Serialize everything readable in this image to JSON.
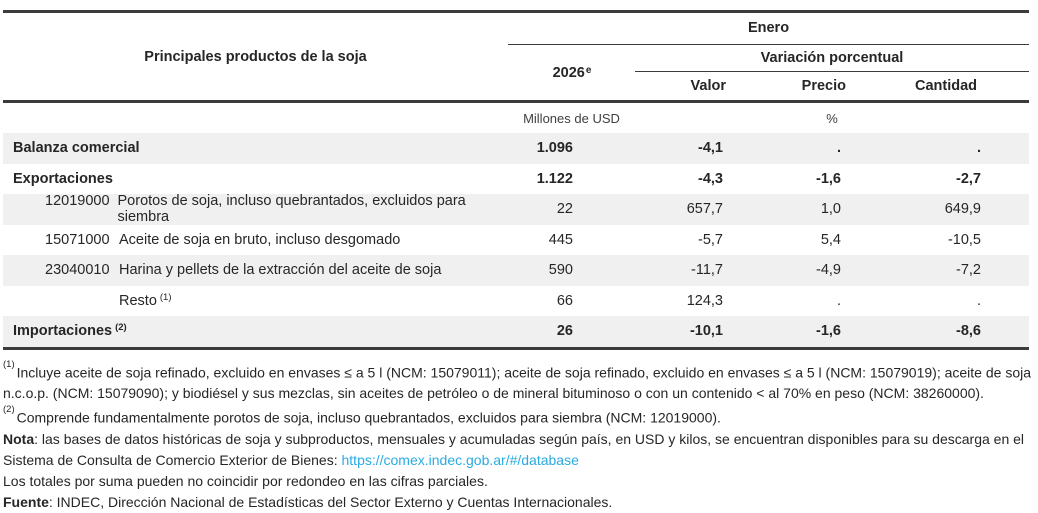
{
  "table": {
    "header": {
      "product_title": "Principales productos de la soja",
      "period": "Enero",
      "year": "2026",
      "year_sup": "e",
      "variation": "Variación porcentual",
      "col_valor": "Valor",
      "col_precio": "Precio",
      "col_cantidad": "Cantidad"
    },
    "units": {
      "usd": "Millones de USD",
      "pct": "%"
    },
    "rows": [
      {
        "code": "",
        "label": "Balanza comercial",
        "sup": "",
        "y2026": "1.096",
        "valor": "-4,1",
        "precio": ".",
        "cantidad": "."
      },
      {
        "code": "",
        "label": "Exportaciones",
        "sup": "",
        "y2026": "1.122",
        "valor": "-4,3",
        "precio": "-1,6",
        "cantidad": "-2,7"
      },
      {
        "code": "12019000",
        "label": "Porotos de soja, incluso quebrantados, excluidos para siembra",
        "sup": "",
        "y2026": "22",
        "valor": "657,7",
        "precio": "1,0",
        "cantidad": "649,9"
      },
      {
        "code": "15071000",
        "label": "Aceite de soja en bruto, incluso desgomado",
        "sup": "",
        "y2026": "445",
        "valor": "-5,7",
        "precio": "5,4",
        "cantidad": "-10,5"
      },
      {
        "code": "23040010",
        "label": "Harina y pellets de la extracción del aceite de soja",
        "sup": "",
        "y2026": "590",
        "valor": "-11,7",
        "precio": "-4,9",
        "cantidad": "-7,2"
      },
      {
        "code": "",
        "label": "Resto",
        "sup": "(1)",
        "y2026": "66",
        "valor": "124,3",
        "precio": ".",
        "cantidad": "."
      },
      {
        "code": "",
        "label": "Importaciones",
        "sup": "(2)",
        "y2026": "26",
        "valor": "-10,1",
        "precio": "-1,6",
        "cantidad": "-8,6"
      }
    ]
  },
  "footnotes": [
    {
      "marker": "(1)",
      "text": "Incluye aceite de soja refinado, excluido en envases ≤ a 5 l (NCM: 15079011); aceite de soja refinado, excluido en envases ≤ a 5 l (NCM: 15079019); aceite de soja n.c.o.p. (NCM: 15079090); y biodiésel y sus mezclas, sin aceites de petróleo o de mineral bituminoso o con un contenido < al 70% en peso (NCM: 38260000)."
    },
    {
      "marker": "(2)",
      "text": "Comprende fundamentalmente porotos de soja, incluso quebrantados, excluidos para siembra (NCM: 12019000)."
    }
  ],
  "nota": {
    "label": "Nota",
    "text": ": las bases de datos históricas de soja y subproductos, mensuales y acumuladas según país, en USD y kilos, se encuentran disponibles para su descarga en el Sistema de Consulta de Comercio Exterior de Bienes: ",
    "link": "https://comex.indec.gob.ar/#/database"
  },
  "rounding_note": "Los totales por suma pueden no coincidir por redondeo en las cifras parciales.",
  "fuente": {
    "label": "Fuente",
    "text": ": INDEC, Dirección Nacional de Estadísticas del Sector Externo y Cuentas Internacionales."
  },
  "colors": {
    "link": "#29abe2",
    "zebra_row": "#f0f0f1",
    "border": "#3b3b3b"
  }
}
